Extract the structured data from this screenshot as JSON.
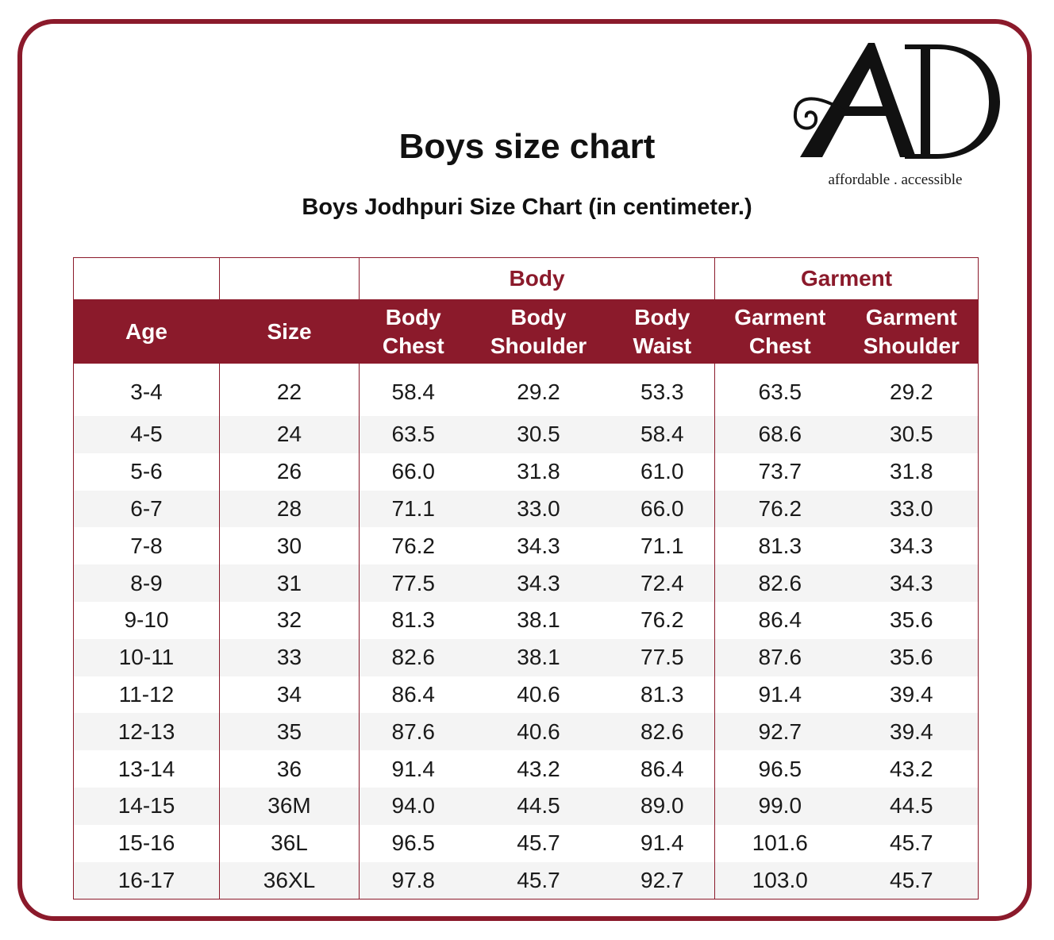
{
  "title": "Boys size chart",
  "subtitle": "Boys Jodhpuri Size Chart (in centimeter.)",
  "logo": {
    "letters": "AD",
    "tagline": "affordable . accessible"
  },
  "colors": {
    "accent": "#8b1a2b",
    "stripe": "#f4f4f4"
  },
  "groups": {
    "body": "Body",
    "garment": "Garment"
  },
  "columns": {
    "age": "Age",
    "size": "Size",
    "body_chest": [
      "Body",
      "Chest"
    ],
    "body_shoulder": [
      "Body",
      "Shoulder"
    ],
    "body_waist": [
      "Body",
      "Waist"
    ],
    "garment_chest": [
      "Garment",
      "Chest"
    ],
    "garment_shoulder": [
      "Garment",
      "Shoulder"
    ]
  },
  "rows": [
    [
      "3-4",
      "22",
      "58.4",
      "29.2",
      "53.3",
      "63.5",
      "29.2"
    ],
    [
      "4-5",
      "24",
      "63.5",
      "30.5",
      "58.4",
      "68.6",
      "30.5"
    ],
    [
      "5-6",
      "26",
      "66.0",
      "31.8",
      "61.0",
      "73.7",
      "31.8"
    ],
    [
      "6-7",
      "28",
      "71.1",
      "33.0",
      "66.0",
      "76.2",
      "33.0"
    ],
    [
      "7-8",
      "30",
      "76.2",
      "34.3",
      "71.1",
      "81.3",
      "34.3"
    ],
    [
      "8-9",
      "31",
      "77.5",
      "34.3",
      "72.4",
      "82.6",
      "34.3"
    ],
    [
      "9-10",
      "32",
      "81.3",
      "38.1",
      "76.2",
      "86.4",
      "35.6"
    ],
    [
      "10-11",
      "33",
      "82.6",
      "38.1",
      "77.5",
      "87.6",
      "35.6"
    ],
    [
      "11-12",
      "34",
      "86.4",
      "40.6",
      "81.3",
      "91.4",
      "39.4"
    ],
    [
      "12-13",
      "35",
      "87.6",
      "40.6",
      "82.6",
      "92.7",
      "39.4"
    ],
    [
      "13-14",
      "36",
      "91.4",
      "43.2",
      "86.4",
      "96.5",
      "43.2"
    ],
    [
      "14-15",
      "36M",
      "94.0",
      "44.5",
      "89.0",
      "99.0",
      "44.5"
    ],
    [
      "15-16",
      "36L",
      "96.5",
      "45.7",
      "91.4",
      "101.6",
      "45.7"
    ],
    [
      "16-17",
      "36XL",
      "97.8",
      "45.7",
      "92.7",
      "103.0",
      "45.7"
    ]
  ]
}
